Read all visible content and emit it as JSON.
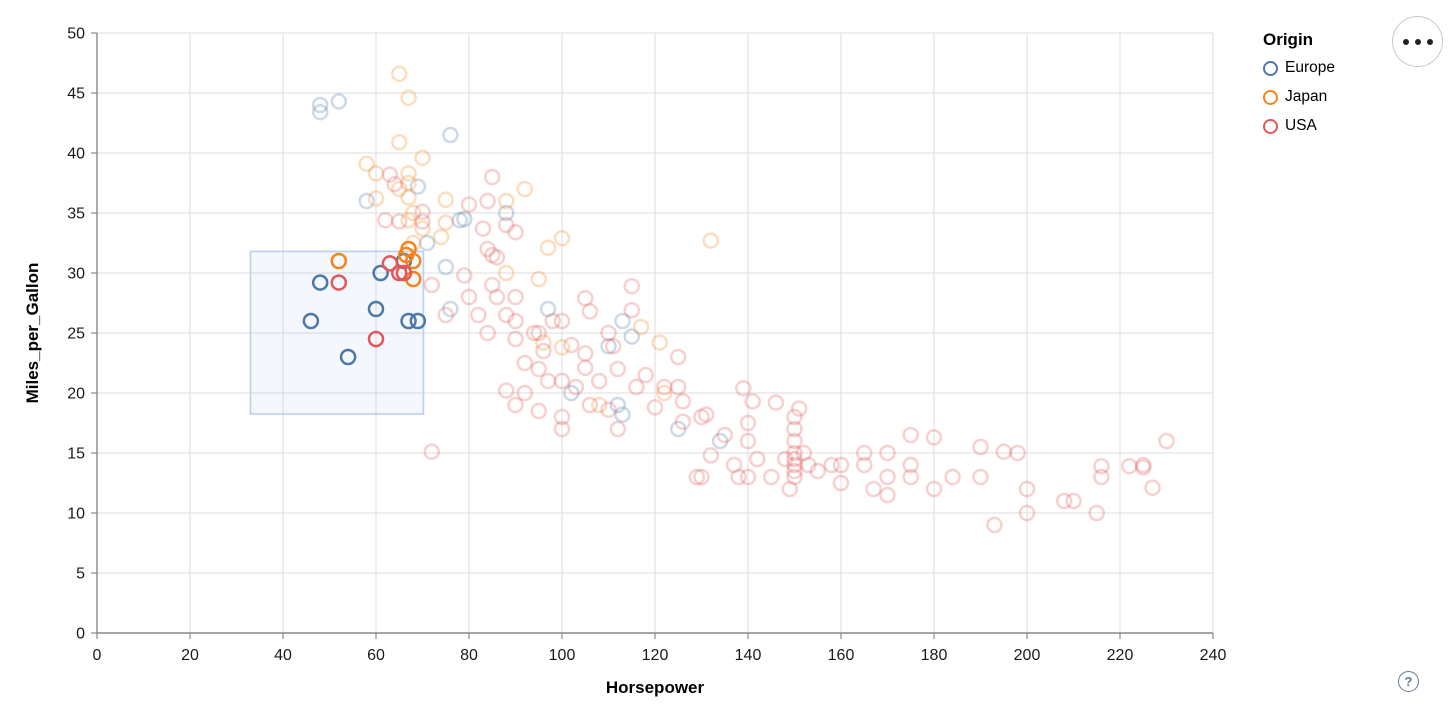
{
  "controls": {
    "menu_button": "options",
    "help_label": "?"
  },
  "chart": {
    "x_axis": {
      "title": "Horsepower",
      "ticks": [
        0,
        20,
        40,
        60,
        80,
        100,
        120,
        140,
        160,
        180,
        200,
        220,
        240
      ]
    },
    "y_axis": {
      "title": "Miles_per_Gallon",
      "ticks": [
        0,
        5,
        10,
        15,
        20,
        25,
        30,
        35,
        40,
        45,
        50
      ]
    },
    "legend": {
      "title": "Origin",
      "items": [
        {
          "label": "Europe",
          "color": "#4c78a8"
        },
        {
          "label": "Japan",
          "color": "#f58518"
        },
        {
          "label": "USA",
          "color": "#e45756"
        }
      ]
    }
  },
  "chart_data": {
    "type": "scatter",
    "title": "",
    "xlabel": "Horsepower",
    "ylabel": "Miles_per_Gallon",
    "xlim": [
      0,
      240
    ],
    "ylim": [
      0,
      50
    ],
    "grid": true,
    "legend_position": "top-right",
    "marker": {
      "shape": "open-circle",
      "radius": 7,
      "stroke_width": 2.5,
      "faded_opacity": 0.28
    },
    "brush_selection": {
      "x": [
        33,
        70.2
      ],
      "y": [
        18.25,
        31.8
      ],
      "fill": "#6e9fe8",
      "fill_opacity": 0.08,
      "stroke": "#b9d0f2"
    },
    "series": [
      {
        "name": "Europe",
        "color": "#4c78a8",
        "selected_points": [
          [
            46,
            26
          ],
          [
            48,
            29.2
          ],
          [
            54,
            23
          ],
          [
            60,
            27
          ],
          [
            61,
            30
          ],
          [
            66,
            31
          ],
          [
            67,
            26
          ],
          [
            69,
            26
          ]
        ],
        "points": [
          [
            48,
            43.4
          ],
          [
            52,
            44.3
          ],
          [
            48,
            44.0
          ],
          [
            76,
            41.5
          ],
          [
            69,
            37.2
          ],
          [
            58,
            36.0
          ],
          [
            78,
            34.4
          ],
          [
            71,
            32.5
          ],
          [
            88,
            35.0
          ],
          [
            79,
            34.5
          ],
          [
            75,
            30.5
          ],
          [
            76,
            27.0
          ],
          [
            97,
            27.0
          ],
          [
            113,
            26.0
          ],
          [
            115,
            24.7
          ],
          [
            110,
            23.9
          ],
          [
            102,
            20.0
          ],
          [
            112,
            19.0
          ],
          [
            113,
            18.2
          ],
          [
            125,
            17.0
          ],
          [
            134,
            16.0
          ]
        ]
      },
      {
        "name": "Japan",
        "color": "#f58518",
        "selected_points": [
          [
            52,
            31
          ],
          [
            66.5,
            31.5
          ],
          [
            67,
            32
          ],
          [
            68,
            31
          ],
          [
            68,
            29.5
          ]
        ],
        "points": [
          [
            65,
            46.6
          ],
          [
            67,
            44.6
          ],
          [
            65,
            40.9
          ],
          [
            70,
            39.6
          ],
          [
            58,
            39.1
          ],
          [
            60,
            38.3
          ],
          [
            67,
            38.3
          ],
          [
            67,
            37.5
          ],
          [
            65,
            37.0
          ],
          [
            60,
            36.2
          ],
          [
            67,
            36.3
          ],
          [
            75,
            36.1
          ],
          [
            88,
            36.0
          ],
          [
            92,
            37.0
          ],
          [
            68,
            35.0
          ],
          [
            67,
            34.4
          ],
          [
            75,
            34.2
          ],
          [
            74,
            33.0
          ],
          [
            70,
            33.7
          ],
          [
            68,
            32.5
          ],
          [
            97,
            32.1
          ],
          [
            100,
            32.9
          ],
          [
            132,
            32.7
          ],
          [
            88,
            30.0
          ],
          [
            95,
            29.5
          ],
          [
            96,
            24.2
          ],
          [
            100,
            23.8
          ],
          [
            117,
            25.5
          ],
          [
            121,
            24.2
          ],
          [
            122,
            20.0
          ],
          [
            108,
            19.0
          ]
        ]
      },
      {
        "name": "USA",
        "color": "#e45756",
        "selected_points": [
          [
            52,
            29.2
          ],
          [
            60,
            24.5
          ],
          [
            63,
            30.8
          ],
          [
            65,
            30
          ],
          [
            66,
            30
          ]
        ],
        "points": [
          [
            63,
            38.2
          ],
          [
            64,
            37.4
          ],
          [
            85,
            38.0
          ],
          [
            62,
            34.4
          ],
          [
            65,
            34.3
          ],
          [
            70,
            34.3
          ],
          [
            70,
            35.1
          ],
          [
            84,
            36.0
          ],
          [
            80,
            35.7
          ],
          [
            88,
            34.0
          ],
          [
            90,
            33.4
          ],
          [
            83,
            33.7
          ],
          [
            84,
            32.0
          ],
          [
            85,
            31.5
          ],
          [
            86,
            31.3
          ],
          [
            72,
            29.0
          ],
          [
            75,
            26.5
          ],
          [
            79,
            29.8
          ],
          [
            80,
            28.0
          ],
          [
            82,
            26.5
          ],
          [
            84,
            25.0
          ],
          [
            85,
            29.0
          ],
          [
            86,
            28.0
          ],
          [
            88,
            26.5
          ],
          [
            88,
            20.2
          ],
          [
            90,
            28.0
          ],
          [
            90,
            26.0
          ],
          [
            90,
            24.5
          ],
          [
            90,
            19.0
          ],
          [
            92,
            22.5
          ],
          [
            92,
            20.0
          ],
          [
            94,
            25.0
          ],
          [
            95,
            25.0
          ],
          [
            95,
            22.0
          ],
          [
            95,
            18.5
          ],
          [
            96,
            23.5
          ],
          [
            97,
            21.0
          ],
          [
            98,
            26.0
          ],
          [
            100,
            26.0
          ],
          [
            100,
            21.0
          ],
          [
            100,
            18.0
          ],
          [
            100,
            17.0
          ],
          [
            102,
            24.0
          ],
          [
            103,
            20.5
          ],
          [
            105,
            27.9
          ],
          [
            106,
            26.8
          ],
          [
            105,
            23.3
          ],
          [
            105,
            22.1
          ],
          [
            106,
            19.0
          ],
          [
            108,
            21.0
          ],
          [
            110,
            25.0
          ],
          [
            111,
            23.9
          ],
          [
            110,
            18.6
          ],
          [
            112,
            22.0
          ],
          [
            112,
            17.0
          ],
          [
            115,
            28.9
          ],
          [
            115,
            26.9
          ],
          [
            116,
            20.5
          ],
          [
            118,
            21.5
          ],
          [
            120,
            18.8
          ],
          [
            122,
            20.5
          ],
          [
            125,
            20.5
          ],
          [
            125,
            23.0
          ],
          [
            126,
            19.3
          ],
          [
            126,
            17.6
          ],
          [
            129,
            13.0
          ],
          [
            130,
            18.0
          ],
          [
            131,
            18.2
          ],
          [
            130,
            13.0
          ],
          [
            132,
            14.8
          ],
          [
            135,
            16.5
          ],
          [
            137,
            14.0
          ],
          [
            138,
            13.0
          ],
          [
            139,
            20.4
          ],
          [
            140,
            17.5
          ],
          [
            140,
            16.0
          ],
          [
            140,
            13.0
          ],
          [
            141,
            19.3
          ],
          [
            142,
            14.5
          ],
          [
            145,
            13.0
          ],
          [
            146,
            19.2
          ],
          [
            148,
            14.5
          ],
          [
            149,
            12.0
          ],
          [
            150,
            18.0
          ],
          [
            150,
            17.0
          ],
          [
            150,
            16.0
          ],
          [
            150,
            15.0
          ],
          [
            150,
            14.5
          ],
          [
            150,
            14.0
          ],
          [
            150,
            13.5
          ],
          [
            150,
            13.0
          ],
          [
            151,
            18.7
          ],
          [
            152,
            15.0
          ],
          [
            153,
            14.0
          ],
          [
            155,
            13.5
          ],
          [
            158,
            14.0
          ],
          [
            160,
            14.0
          ],
          [
            160,
            12.5
          ],
          [
            165,
            15.0
          ],
          [
            165,
            14.0
          ],
          [
            167,
            12.0
          ],
          [
            170,
            15.0
          ],
          [
            170,
            13.0
          ],
          [
            170,
            11.5
          ],
          [
            175,
            16.5
          ],
          [
            175,
            14.0
          ],
          [
            175,
            13.0
          ],
          [
            180,
            16.3
          ],
          [
            180,
            12.0
          ],
          [
            184,
            13.0
          ],
          [
            190,
            15.5
          ],
          [
            190,
            13.0
          ],
          [
            193,
            9.0
          ],
          [
            195,
            15.1
          ],
          [
            198,
            15.0
          ],
          [
            200,
            12.0
          ],
          [
            200,
            10.0
          ],
          [
            208,
            11.0
          ],
          [
            210,
            11.0
          ],
          [
            215,
            10.0
          ],
          [
            216,
            13.9
          ],
          [
            216,
            13.0
          ],
          [
            222,
            13.9
          ],
          [
            225,
            14.0
          ],
          [
            225,
            13.8
          ],
          [
            227,
            12.1
          ],
          [
            230,
            16.0
          ],
          [
            72,
            15.1
          ]
        ]
      }
    ]
  }
}
